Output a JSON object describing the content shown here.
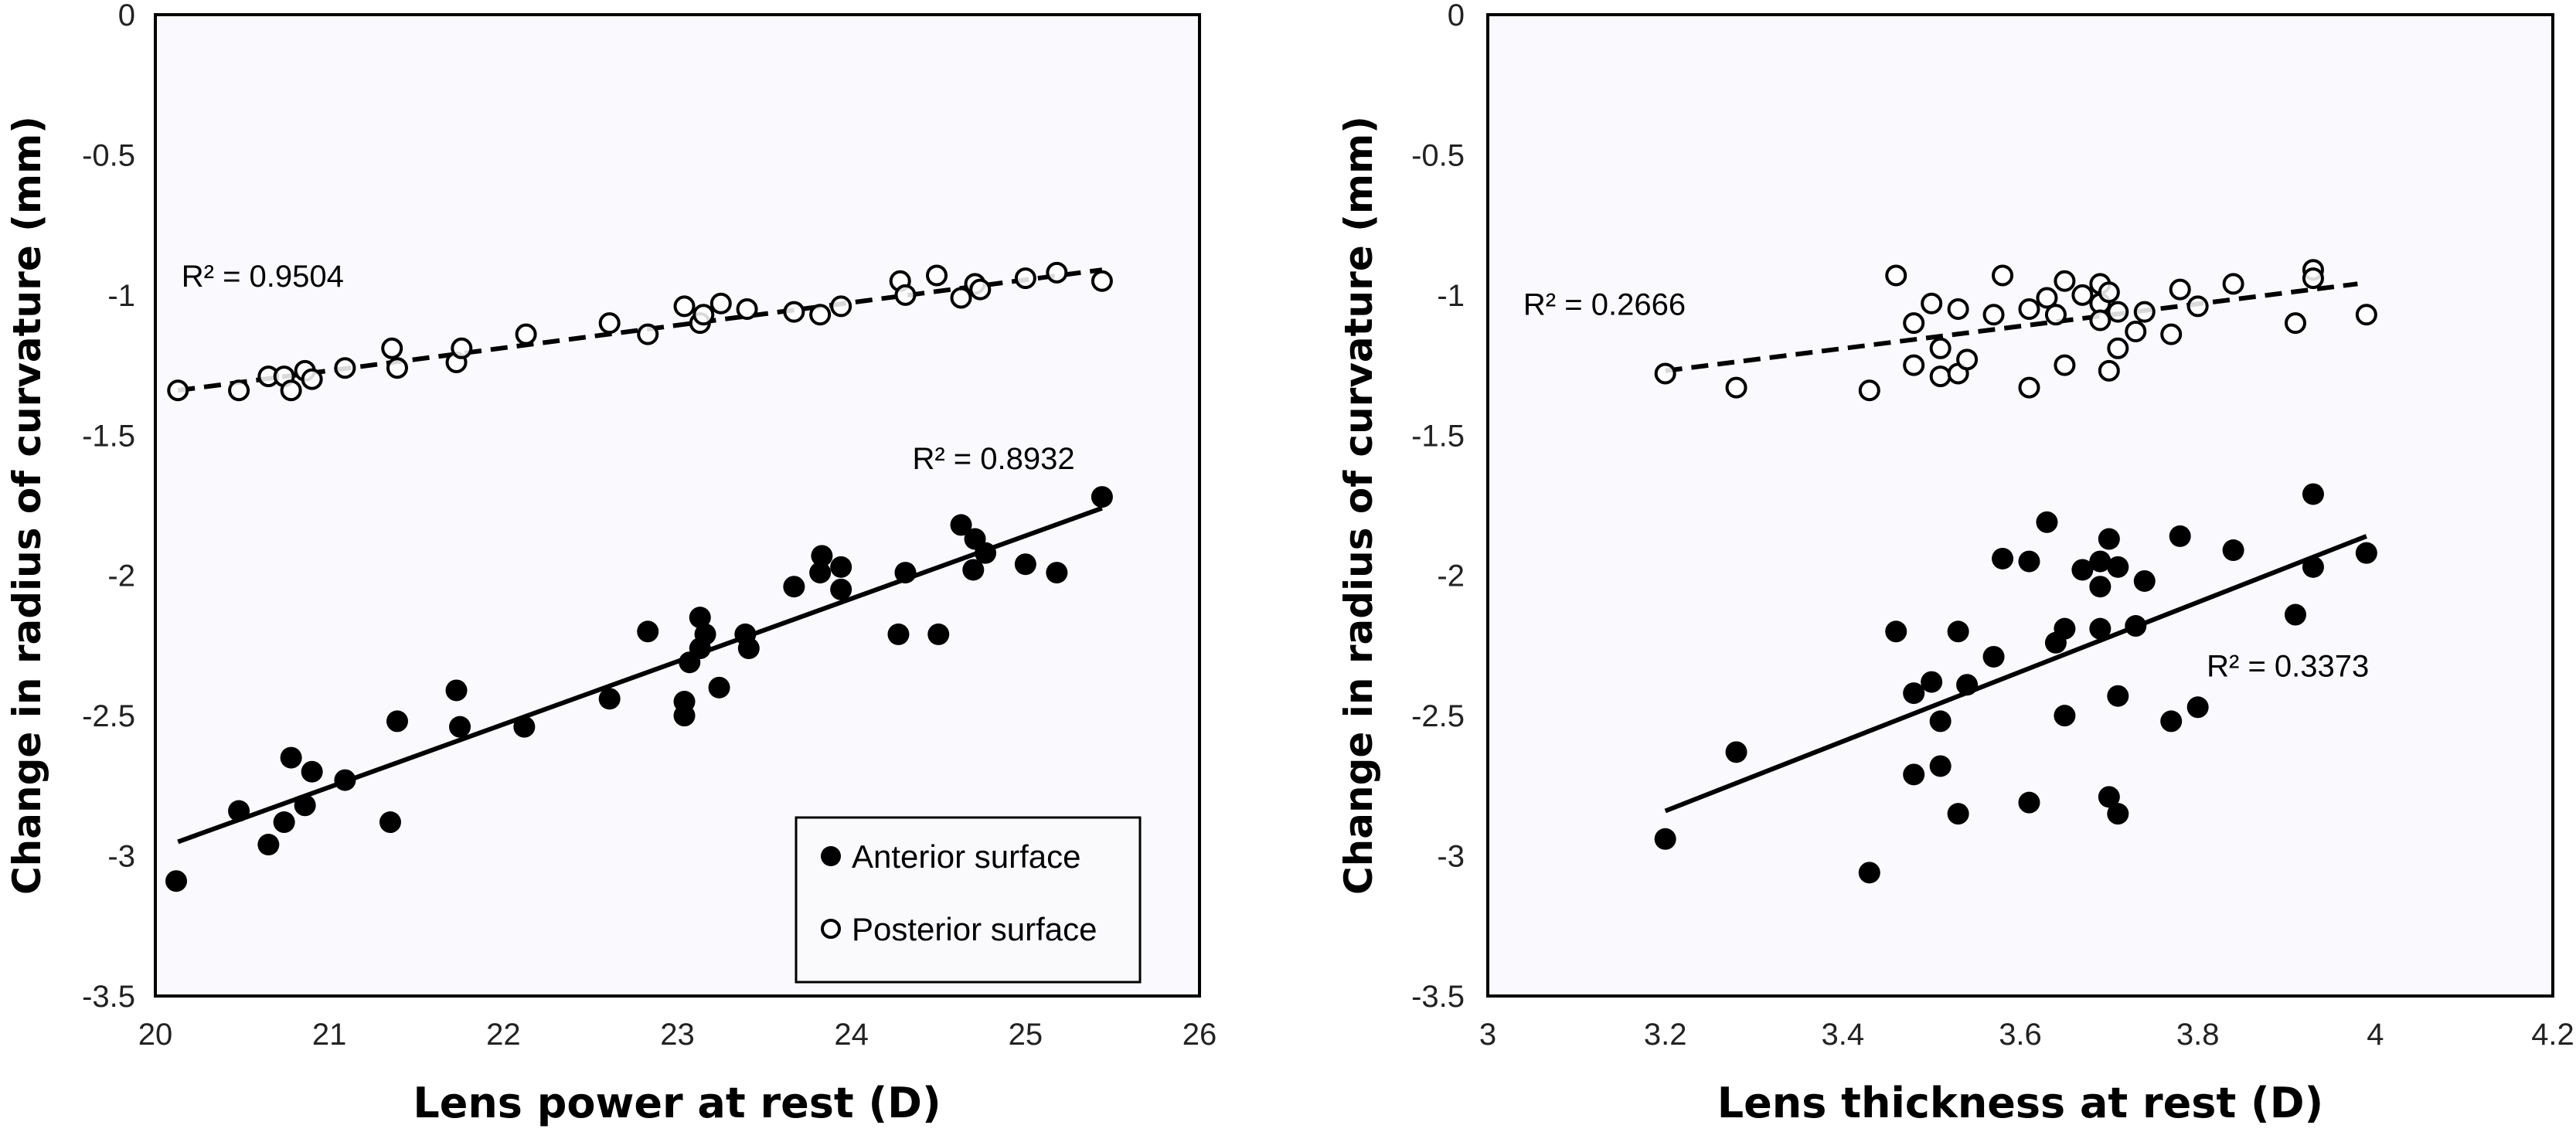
{
  "chart_data": [
    {
      "type": "scatter",
      "xlabel": "Lens power at rest (D)",
      "ylabel": "Change in radius of curvature (mm)",
      "xlim": [
        20,
        26
      ],
      "ylim": [
        -3.5,
        0
      ],
      "xticks": [
        "20",
        "21",
        "22",
        "23",
        "24",
        "25",
        "26"
      ],
      "yticks": [
        "0",
        "-0.5",
        "-1",
        "-1.5",
        "-2",
        "-2.5",
        "-3",
        "-3.5"
      ],
      "grid": false,
      "legend": {
        "placement": "bottom-right",
        "entries": [
          "Anterior surface",
          "Posterior surface"
        ]
      },
      "series": [
        {
          "name": "Anterior surface",
          "marker": "filled-circle",
          "r2_label": "R² = 0.8932",
          "trendline": {
            "style": "solid",
            "from": [
              20.13,
              -2.95
            ],
            "to": [
              25.44,
              -1.76
            ]
          },
          "points": [
            [
              20.12,
              -3.09
            ],
            [
              20.48,
              -2.84
            ],
            [
              20.65,
              -2.96
            ],
            [
              20.74,
              -2.88
            ],
            [
              20.78,
              -2.65
            ],
            [
              20.86,
              -2.82
            ],
            [
              20.9,
              -2.7
            ],
            [
              21.09,
              -2.73
            ],
            [
              21.35,
              -2.88
            ],
            [
              21.39,
              -2.52
            ],
            [
              21.73,
              -2.41
            ],
            [
              21.75,
              -2.54
            ],
            [
              22.12,
              -2.54
            ],
            [
              22.61,
              -2.44
            ],
            [
              22.83,
              -2.2
            ],
            [
              23.04,
              -2.45
            ],
            [
              23.04,
              -2.5
            ],
            [
              23.07,
              -2.31
            ],
            [
              23.13,
              -2.15
            ],
            [
              23.16,
              -2.21
            ],
            [
              23.13,
              -2.26
            ],
            [
              23.24,
              -2.4
            ],
            [
              23.39,
              -2.21
            ],
            [
              23.41,
              -2.26
            ],
            [
              23.67,
              -2.04
            ],
            [
              23.83,
              -1.93
            ],
            [
              23.82,
              -1.99
            ],
            [
              23.94,
              -1.97
            ],
            [
              23.94,
              -2.05
            ],
            [
              24.27,
              -2.21
            ],
            [
              24.31,
              -1.99
            ],
            [
              24.5,
              -2.21
            ],
            [
              24.63,
              -1.82
            ],
            [
              24.7,
              -1.98
            ],
            [
              24.71,
              -1.87
            ],
            [
              24.77,
              -1.92
            ],
            [
              25.0,
              -1.96
            ],
            [
              25.18,
              -1.99
            ],
            [
              25.44,
              -1.72
            ]
          ]
        },
        {
          "name": "Posterior surface",
          "marker": "open-circle",
          "r2_label": "R² = 0.9504",
          "trendline": {
            "style": "dashed",
            "from": [
              20.13,
              -1.34
            ],
            "to": [
              25.44,
              -0.91
            ]
          },
          "points": [
            [
              20.13,
              -1.34
            ],
            [
              20.48,
              -1.34
            ],
            [
              20.65,
              -1.29
            ],
            [
              20.74,
              -1.29
            ],
            [
              20.78,
              -1.34
            ],
            [
              20.86,
              -1.27
            ],
            [
              20.9,
              -1.3
            ],
            [
              21.09,
              -1.26
            ],
            [
              21.36,
              -1.19
            ],
            [
              21.39,
              -1.26
            ],
            [
              21.73,
              -1.24
            ],
            [
              21.76,
              -1.19
            ],
            [
              22.13,
              -1.14
            ],
            [
              22.61,
              -1.1
            ],
            [
              22.83,
              -1.14
            ],
            [
              23.04,
              -1.04
            ],
            [
              23.13,
              -1.1
            ],
            [
              23.15,
              -1.07
            ],
            [
              23.25,
              -1.03
            ],
            [
              23.4,
              -1.05
            ],
            [
              23.67,
              -1.06
            ],
            [
              23.82,
              -1.07
            ],
            [
              23.94,
              -1.04
            ],
            [
              24.28,
              -0.95
            ],
            [
              24.31,
              -1.0
            ],
            [
              24.49,
              -0.93
            ],
            [
              24.63,
              -1.01
            ],
            [
              24.71,
              -0.96
            ],
            [
              24.74,
              -0.98
            ],
            [
              25.0,
              -0.94
            ],
            [
              25.18,
              -0.92
            ],
            [
              25.44,
              -0.95
            ]
          ]
        }
      ]
    },
    {
      "type": "scatter",
      "xlabel": "Lens thickness at rest (D)",
      "ylabel": "Change in radius of curvature (mm)",
      "xlim": [
        3,
        4.2
      ],
      "ylim": [
        -3.5,
        0
      ],
      "xticks": [
        "3",
        "3.2",
        "3.4",
        "3.6",
        "3.8",
        "4",
        "4.2"
      ],
      "yticks": [
        "0",
        "-0.5",
        "-1",
        "-1.5",
        "-2",
        "-2.5",
        "-3",
        "-3.5"
      ],
      "grid": false,
      "series": [
        {
          "name": "Anterior surface",
          "marker": "filled-circle",
          "r2_label": "R² = 0.3373",
          "trendline": {
            "style": "solid",
            "from": [
              3.2,
              -2.84
            ],
            "to": [
              3.99,
              -1.86
            ]
          },
          "points": [
            [
              3.2,
              -2.94
            ],
            [
              3.28,
              -2.63
            ],
            [
              3.43,
              -3.06
            ],
            [
              3.46,
              -2.2
            ],
            [
              3.48,
              -2.42
            ],
            [
              3.48,
              -2.71
            ],
            [
              3.5,
              -2.38
            ],
            [
              3.51,
              -2.52
            ],
            [
              3.51,
              -2.68
            ],
            [
              3.53,
              -2.2
            ],
            [
              3.53,
              -2.85
            ],
            [
              3.54,
              -2.39
            ],
            [
              3.57,
              -2.29
            ],
            [
              3.58,
              -1.94
            ],
            [
              3.61,
              -1.95
            ],
            [
              3.61,
              -2.81
            ],
            [
              3.63,
              -1.81
            ],
            [
              3.64,
              -2.24
            ],
            [
              3.65,
              -2.19
            ],
            [
              3.65,
              -2.5
            ],
            [
              3.67,
              -1.98
            ],
            [
              3.69,
              -1.95
            ],
            [
              3.69,
              -2.04
            ],
            [
              3.69,
              -2.19
            ],
            [
              3.7,
              -1.87
            ],
            [
              3.7,
              -2.79
            ],
            [
              3.71,
              -1.97
            ],
            [
              3.71,
              -2.43
            ],
            [
              3.71,
              -2.85
            ],
            [
              3.74,
              -2.02
            ],
            [
              3.73,
              -2.18
            ],
            [
              3.77,
              -2.52
            ],
            [
              3.78,
              -1.86
            ],
            [
              3.8,
              -2.47
            ],
            [
              3.84,
              -1.91
            ],
            [
              3.91,
              -2.14
            ],
            [
              3.93,
              -1.71
            ],
            [
              3.93,
              -1.97
            ],
            [
              3.99,
              -1.92
            ]
          ]
        },
        {
          "name": "Posterior surface",
          "marker": "open-circle",
          "r2_label": "R² = 0.2666",
          "trendline": {
            "style": "dashed",
            "from": [
              3.2,
              -1.27
            ],
            "to": [
              3.98,
              -0.96
            ]
          },
          "points": [
            [
              3.2,
              -1.28
            ],
            [
              3.28,
              -1.33
            ],
            [
              3.43,
              -1.34
            ],
            [
              3.46,
              -0.93
            ],
            [
              3.48,
              -1.1
            ],
            [
              3.48,
              -1.25
            ],
            [
              3.5,
              -1.03
            ],
            [
              3.51,
              -1.19
            ],
            [
              3.51,
              -1.29
            ],
            [
              3.53,
              -1.05
            ],
            [
              3.53,
              -1.28
            ],
            [
              3.54,
              -1.23
            ],
            [
              3.57,
              -1.07
            ],
            [
              3.58,
              -0.93
            ],
            [
              3.61,
              -1.05
            ],
            [
              3.61,
              -1.33
            ],
            [
              3.63,
              -1.01
            ],
            [
              3.64,
              -1.07
            ],
            [
              3.65,
              -0.95
            ],
            [
              3.65,
              -1.25
            ],
            [
              3.67,
              -1.0
            ],
            [
              3.69,
              -0.96
            ],
            [
              3.69,
              -1.03
            ],
            [
              3.69,
              -1.09
            ],
            [
              3.7,
              -1.27
            ],
            [
              3.7,
              -0.99
            ],
            [
              3.71,
              -1.06
            ],
            [
              3.71,
              -1.19
            ],
            [
              3.73,
              -1.13
            ],
            [
              3.74,
              -1.06
            ],
            [
              3.77,
              -1.14
            ],
            [
              3.78,
              -0.98
            ],
            [
              3.8,
              -1.04
            ],
            [
              3.84,
              -0.96
            ],
            [
              3.91,
              -1.1
            ],
            [
              3.93,
              -0.91
            ],
            [
              3.93,
              -0.94
            ],
            [
              3.99,
              -1.07
            ]
          ]
        }
      ]
    }
  ]
}
